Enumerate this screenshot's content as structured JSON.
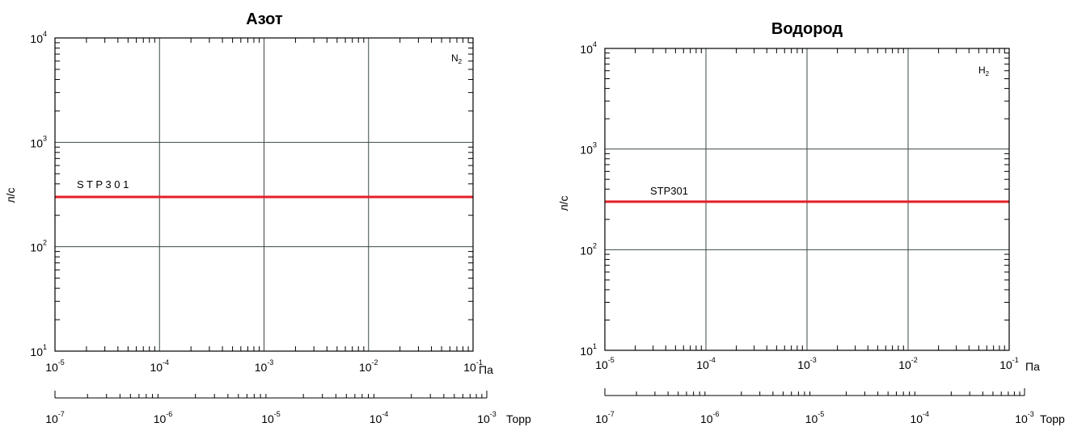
{
  "chart_data": [
    {
      "type": "line",
      "title": "Азот",
      "gas": {
        "symbol": "N",
        "subscript": "2"
      },
      "ylabel": "л/с",
      "xlabel": "Па",
      "x2label": "Торр",
      "x_scale": "log",
      "y_scale": "log",
      "xlim": [
        1e-05,
        0.1
      ],
      "ylim": [
        10,
        10000
      ],
      "x2lim": [
        1e-07,
        0.001
      ],
      "grid": true,
      "x_ticks": [
        {
          "base": "10",
          "exp": "-5"
        },
        {
          "base": "10",
          "exp": "-4"
        },
        {
          "base": "10",
          "exp": "-3"
        },
        {
          "base": "10",
          "exp": "-2"
        },
        {
          "base": "10",
          "exp": "-1"
        }
      ],
      "x2_ticks": [
        {
          "base": "10",
          "exp": "-7"
        },
        {
          "base": "10",
          "exp": "-6"
        },
        {
          "base": "10",
          "exp": "-5"
        },
        {
          "base": "10",
          "exp": "-4"
        },
        {
          "base": "10",
          "exp": "-3"
        }
      ],
      "y_ticks": [
        {
          "base": "10",
          "exp": "1"
        },
        {
          "base": "10",
          "exp": "2"
        },
        {
          "base": "10",
          "exp": "3"
        },
        {
          "base": "10",
          "exp": "4"
        }
      ],
      "series": [
        {
          "name": "S T P 3 0 1",
          "color": "#e41f26",
          "x": [
            1e-05,
            0.1
          ],
          "y": [
            300,
            300
          ]
        }
      ]
    },
    {
      "type": "line",
      "title": "Водород",
      "gas": {
        "symbol": "H",
        "subscript": "2"
      },
      "ylabel": "л/с",
      "xlabel": "Па",
      "x2label": "Торр",
      "x_scale": "log",
      "y_scale": "log",
      "xlim": [
        1e-05,
        0.1
      ],
      "ylim": [
        10,
        10000
      ],
      "x2lim": [
        1e-07,
        0.001
      ],
      "grid": true,
      "x_ticks": [
        {
          "base": "10",
          "exp": "-5"
        },
        {
          "base": "10",
          "exp": "-4"
        },
        {
          "base": "10",
          "exp": "-3"
        },
        {
          "base": "10",
          "exp": "-2"
        },
        {
          "base": "10",
          "exp": "-1"
        }
      ],
      "x2_ticks": [
        {
          "base": "10",
          "exp": "-7"
        },
        {
          "base": "10",
          "exp": "-6"
        },
        {
          "base": "10",
          "exp": "-5"
        },
        {
          "base": "10",
          "exp": "-4"
        },
        {
          "base": "10",
          "exp": "-3"
        }
      ],
      "y_ticks": [
        {
          "base": "10",
          "exp": "1"
        },
        {
          "base": "10",
          "exp": "2"
        },
        {
          "base": "10",
          "exp": "3"
        },
        {
          "base": "10",
          "exp": "4"
        }
      ],
      "series": [
        {
          "name": "STP301",
          "color": "#e41f26",
          "x": [
            1e-05,
            0.1
          ],
          "y": [
            300,
            300
          ]
        }
      ]
    }
  ]
}
